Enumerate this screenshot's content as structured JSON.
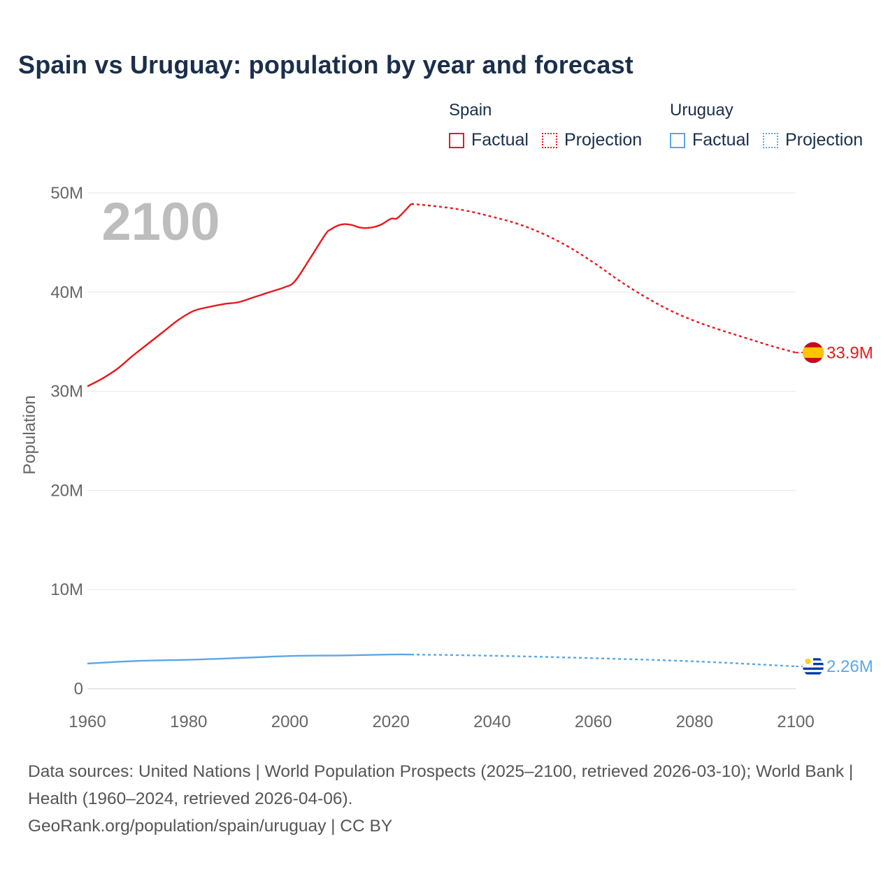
{
  "title": "Spain vs Uruguay: population by year and forecast",
  "legend": {
    "groups": [
      {
        "name": "Spain",
        "color": "#e8191d",
        "factual_label": "Factual",
        "projection_label": "Projection"
      },
      {
        "name": "Uruguay",
        "color": "#5aa7e8",
        "factual_label": "Factual",
        "projection_label": "Projection"
      }
    ]
  },
  "chart_data": {
    "type": "line",
    "title": "Spain vs Uruguay: population by year and forecast",
    "ylabel": "Population",
    "xlabel": "",
    "xlim": [
      1960,
      2100
    ],
    "ylim": [
      0,
      50000000
    ],
    "x_ticks": [
      1960,
      1980,
      2000,
      2020,
      2040,
      2060,
      2080,
      2100
    ],
    "x_tick_labels": [
      "1960",
      "1980",
      "2000",
      "2020",
      "2040",
      "2060",
      "2080",
      "2100"
    ],
    "y_ticks": [
      0,
      10000000,
      20000000,
      30000000,
      40000000,
      50000000
    ],
    "y_tick_labels": [
      "0",
      "10M",
      "20M",
      "30M",
      "40M",
      "50M"
    ],
    "grid": true,
    "year_label": "2100",
    "series": [
      {
        "name": "Spain",
        "color": "#e8191d",
        "end_label": "33.9M",
        "factual": {
          "x": [
            1960,
            1963,
            1966,
            1969,
            1972,
            1975,
            1978,
            1981,
            1984,
            1987,
            1990,
            1993,
            1996,
            1999,
            2001,
            2004,
            2007,
            2008,
            2010,
            2012,
            2014,
            2016,
            2018,
            2020,
            2021,
            2022,
            2024
          ],
          "y": [
            30500000,
            31300000,
            32300000,
            33600000,
            34800000,
            36000000,
            37200000,
            38100000,
            38500000,
            38800000,
            39000000,
            39500000,
            40000000,
            40500000,
            41100000,
            43400000,
            45800000,
            46300000,
            46800000,
            46800000,
            46500000,
            46500000,
            46800000,
            47400000,
            47400000,
            47800000,
            48900000
          ]
        },
        "projection": {
          "x": [
            2024,
            2030,
            2035,
            2040,
            2045,
            2050,
            2055,
            2060,
            2065,
            2070,
            2075,
            2080,
            2085,
            2090,
            2095,
            2100
          ],
          "y": [
            48900000,
            48600000,
            48200000,
            47600000,
            46900000,
            45900000,
            44600000,
            43000000,
            41200000,
            39600000,
            38200000,
            37100000,
            36200000,
            35400000,
            34600000,
            33900000
          ]
        }
      },
      {
        "name": "Uruguay",
        "color": "#5aa7e8",
        "end_label": "2.26M",
        "factual": {
          "x": [
            1960,
            1970,
            1980,
            1990,
            2000,
            2010,
            2020,
            2024
          ],
          "y": [
            2540000,
            2810000,
            2920000,
            3100000,
            3300000,
            3360000,
            3450000,
            3450000
          ],
          "continuous": true
        },
        "projection": {
          "x": [
            2024,
            2040,
            2060,
            2080,
            2100
          ],
          "y": [
            3450000,
            3330000,
            3080000,
            2760000,
            2260000
          ]
        }
      }
    ]
  },
  "source": {
    "line1": "Data sources: United Nations | World Population Prospects (2025–2100, retrieved 2026-03-10); World Bank | Health (1960–2024, retrieved 2026-04-06).",
    "line2": "GeoRank.org/population/spain/uruguay | CC BY"
  }
}
